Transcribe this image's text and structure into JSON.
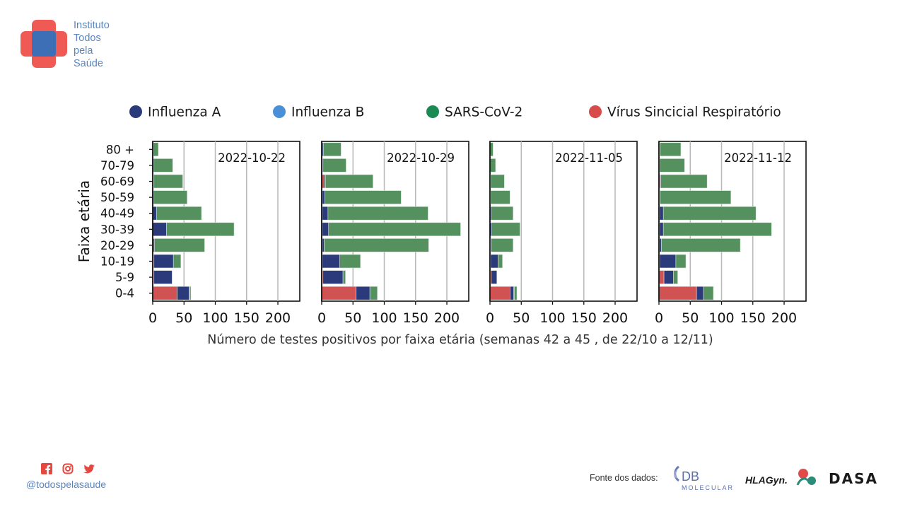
{
  "brand": {
    "name_lines": [
      "Instituto",
      "Todos",
      "pela",
      "Saúde"
    ],
    "colors": {
      "cross": "#ef5b54",
      "cross_center": "#3d6fb6",
      "text": "#5a86c0"
    }
  },
  "footer": {
    "social_icons": [
      "facebook-icon",
      "instagram-icon",
      "twitter-icon"
    ],
    "handle": "@todospelasaude",
    "sources_label": "Fonte dos dados:",
    "source_logos": [
      {
        "name": "db-molecular-logo",
        "text_top": "DB",
        "text_bottom": "MOLECULAR"
      },
      {
        "name": "hla-gyn-logo",
        "text": "HLAGyn."
      },
      {
        "name": "dasa-logo",
        "text": "DASA"
      }
    ]
  },
  "chart_data": {
    "type": "bar",
    "orientation": "horizontal",
    "stacked": true,
    "ylabel": "Faixa etária",
    "xlabel": "Número de testes positivos por faixa etária (semanas 42 a 45 , de 22/10 a 12/11)",
    "categories": [
      "0-4",
      "5-9",
      "10-19",
      "20-29",
      "30-39",
      "40-49",
      "50-59",
      "60-69",
      "70-79",
      "80 +"
    ],
    "xlim": [
      0,
      235
    ],
    "xticks": [
      0,
      50,
      100,
      150,
      200
    ],
    "grid": true,
    "legend_position": "top",
    "series": [
      {
        "name": "Vírus Sincicial Respiratório",
        "color": "#d05252"
      },
      {
        "name": "Influenza A",
        "color": "#2a3a7a"
      },
      {
        "name": "Influenza B",
        "color": "#4a90d9"
      },
      {
        "name": "SARS-CoV-2",
        "color": "#3e8a55"
      }
    ],
    "legend_order": [
      "Influenza A",
      "Influenza B",
      "SARS-CoV-2",
      "Vírus Sincicial Respiratório"
    ],
    "legend_colors": {
      "Influenza A": "#2a3a7a",
      "Influenza B": "#4a90d9",
      "SARS-CoV-2": "#1a8a55",
      "Vírus Sincicial Respiratório": "#d94a4a"
    },
    "bar_colors": {
      "Vírus Sincicial Respiratório": "#d05252",
      "Influenza A": "#2a3a7a",
      "Influenza B": "#4a90d9",
      "SARS-CoV-2": "#55915f"
    },
    "panels": [
      {
        "title": "2022-10-22",
        "values": {
          "Vírus Sincicial Respiratório": [
            39,
            2,
            2,
            1,
            0,
            0,
            0,
            1,
            0,
            0
          ],
          "Influenza A": [
            19,
            29,
            31,
            2,
            22,
            6,
            2,
            1,
            2,
            1
          ],
          "Influenza B": [
            1,
            0,
            0,
            0,
            0,
            0,
            0,
            0,
            0,
            0
          ],
          "SARS-CoV-2": [
            2,
            0,
            12,
            80,
            108,
            72,
            53,
            46,
            30,
            8
          ]
        }
      },
      {
        "title": "2022-10-29",
        "values": {
          "Vírus Sincicial Respiratório": [
            55,
            2,
            1,
            1,
            1,
            1,
            1,
            4,
            1,
            1
          ],
          "Influenza A": [
            22,
            32,
            28,
            3,
            10,
            9,
            4,
            2,
            1,
            2
          ],
          "Influenza B": [
            0,
            0,
            0,
            0,
            0,
            0,
            0,
            0,
            0,
            0
          ],
          "SARS-CoV-2": [
            12,
            4,
            33,
            167,
            211,
            160,
            122,
            76,
            37,
            28
          ]
        }
      },
      {
        "title": "2022-11-05",
        "values": {
          "Vírus Sincicial Respiratório": [
            32,
            2,
            1,
            1,
            0,
            0,
            0,
            1,
            0,
            0
          ],
          "Influenza A": [
            6,
            9,
            12,
            1,
            3,
            2,
            1,
            0,
            0,
            0
          ],
          "Influenza B": [
            1,
            0,
            0,
            0,
            0,
            0,
            0,
            0,
            0,
            0
          ],
          "SARS-CoV-2": [
            4,
            0,
            7,
            35,
            45,
            35,
            31,
            22,
            9,
            5
          ]
        }
      },
      {
        "title": "2022-11-12",
        "values": {
          "Vírus Sincicial Respiratório": [
            60,
            8,
            1,
            1,
            1,
            1,
            1,
            2,
            1,
            1
          ],
          "Influenza A": [
            11,
            15,
            26,
            3,
            6,
            6,
            1,
            1,
            0,
            1
          ],
          "Influenza B": [
            0,
            0,
            0,
            0,
            0,
            0,
            0,
            0,
            0,
            0
          ],
          "SARS-CoV-2": [
            16,
            7,
            16,
            126,
            173,
            148,
            113,
            74,
            40,
            33
          ]
        }
      }
    ]
  }
}
